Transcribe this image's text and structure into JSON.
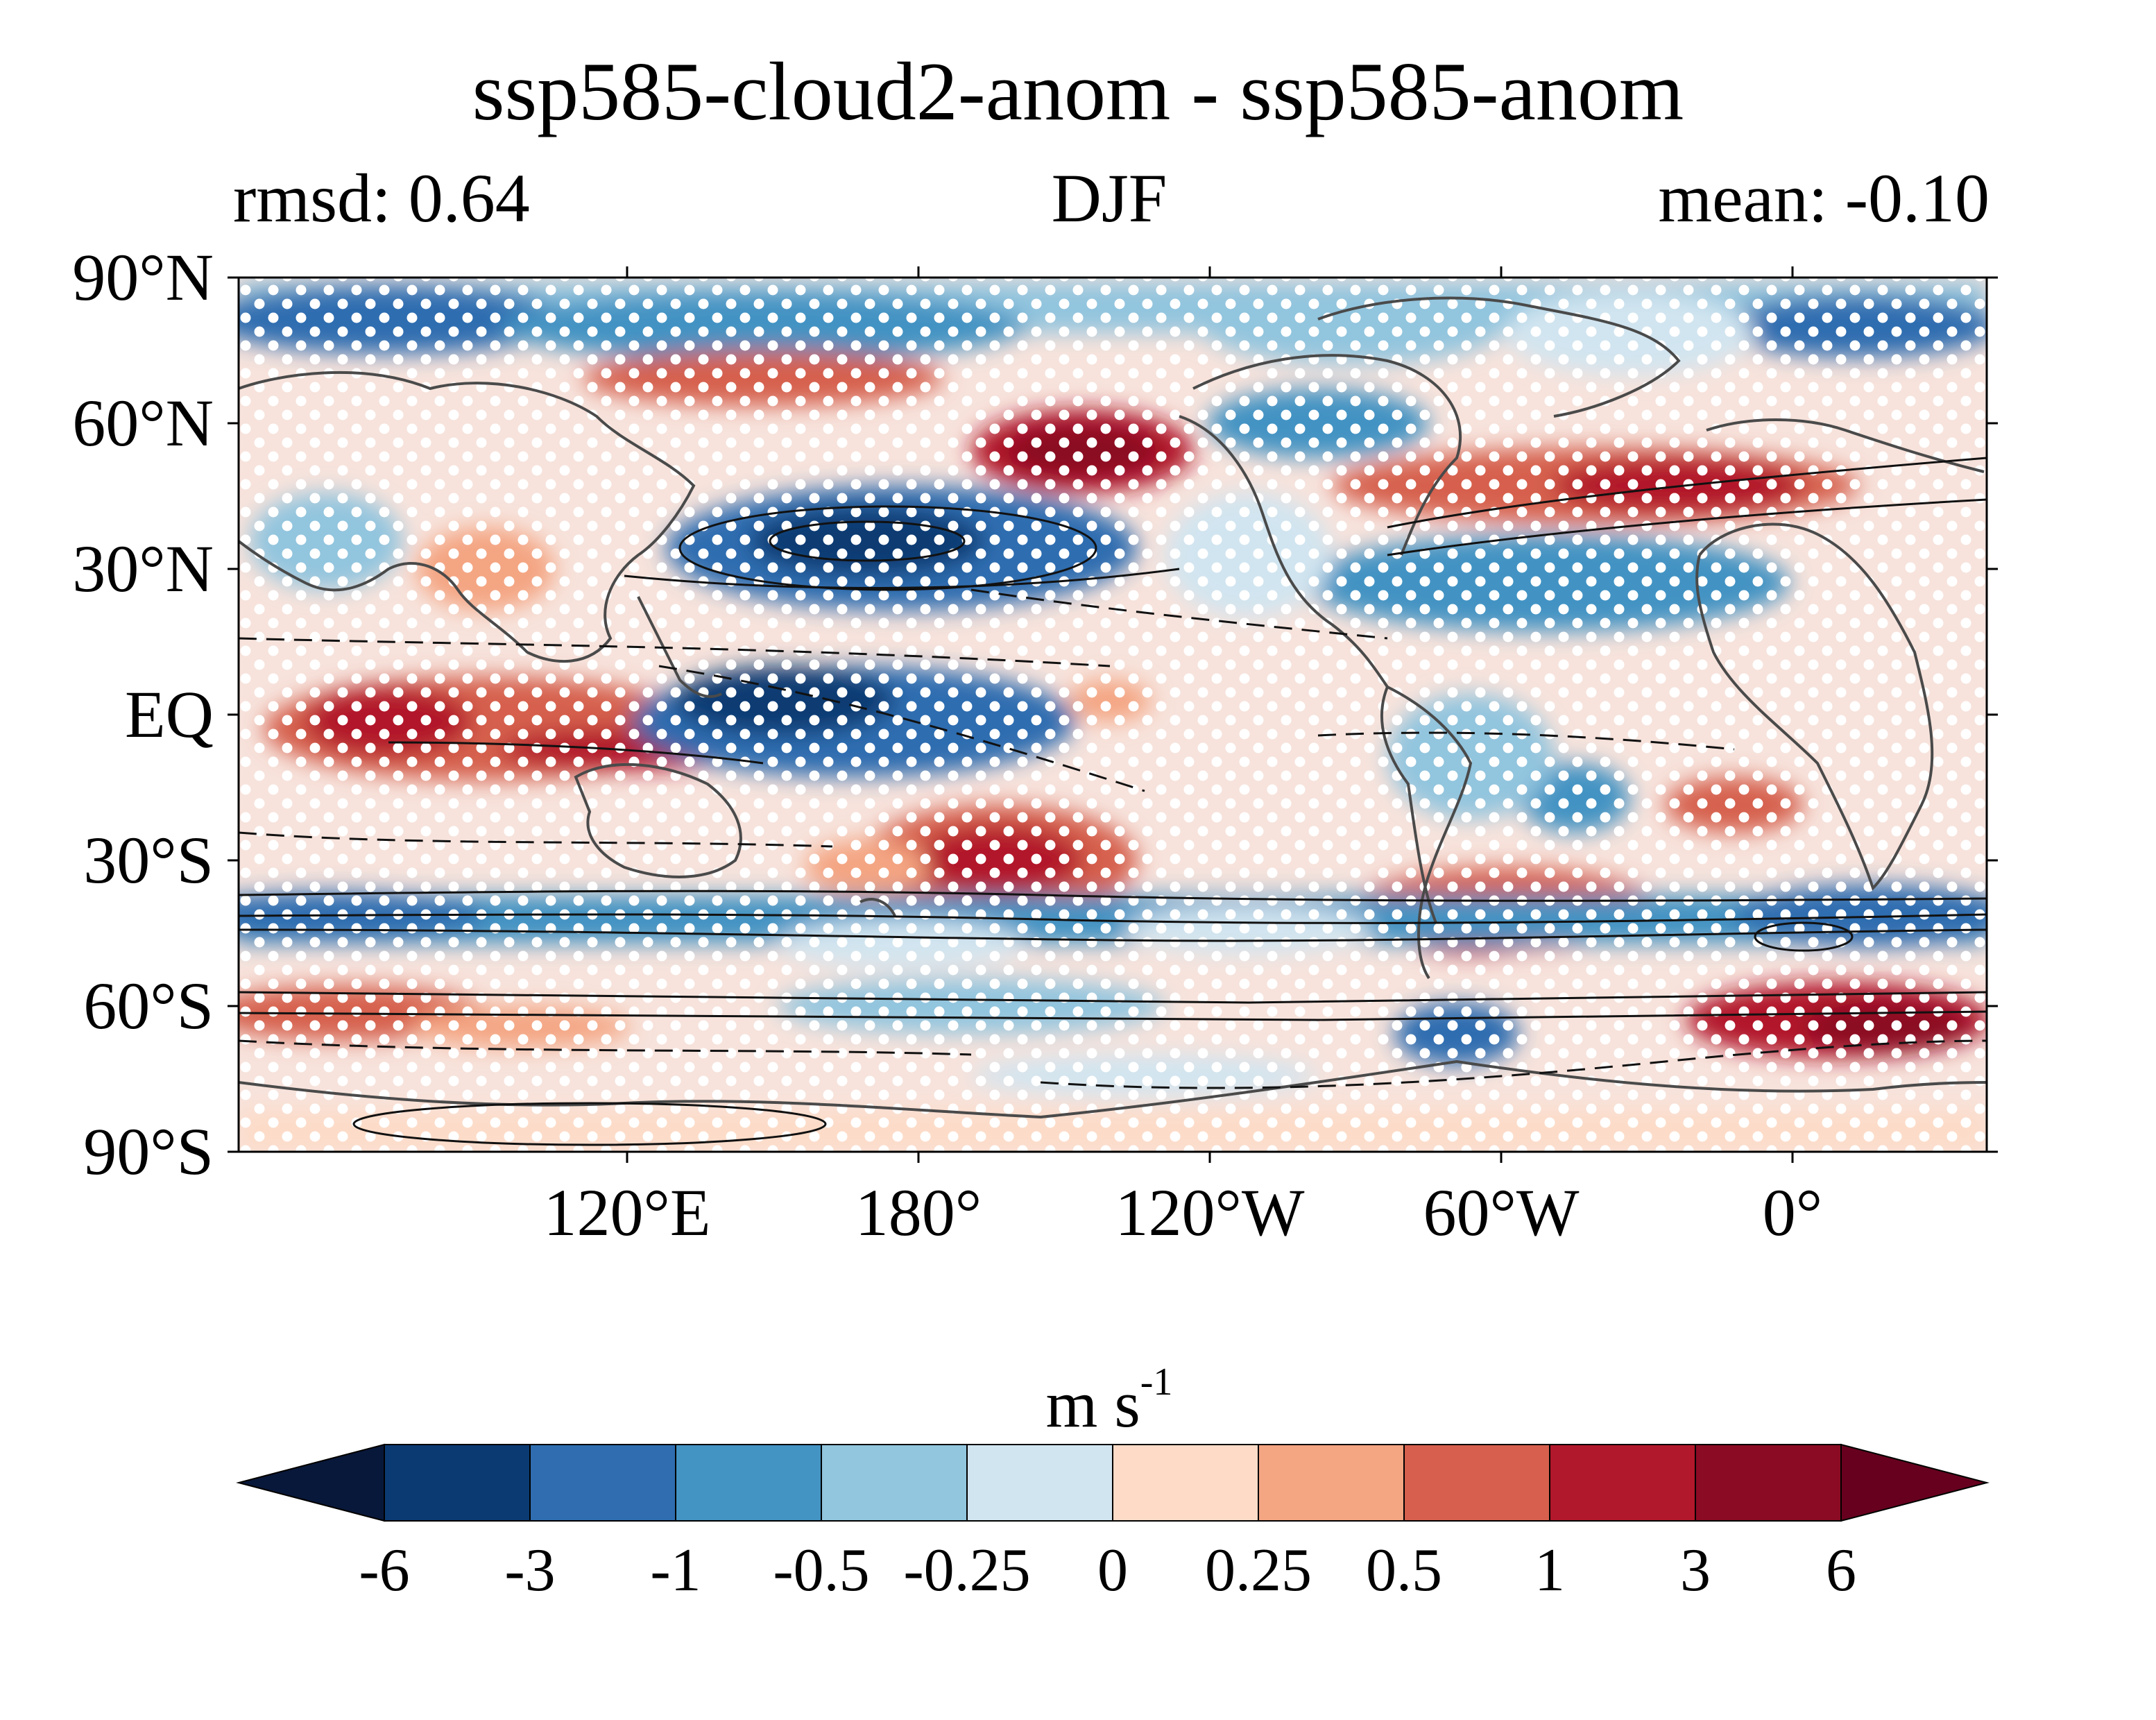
{
  "title": "ssp585-cloud2-anom - ssp585-anom",
  "subtitle_left": "rmsd: 0.64",
  "subtitle_center": "DJF",
  "subtitle_right": "mean: -0.10",
  "lat_labels": [
    "90°N",
    "60°N",
    "30°N",
    "EQ",
    "30°S",
    "60°S",
    "90°S"
  ],
  "lon_labels": [
    "120°E",
    "180°",
    "120°W",
    "60°W",
    "0°"
  ],
  "colorbar": {
    "units_base": "m s",
    "units_exp": "-1",
    "ticks": [
      "-6",
      "-3",
      "-1",
      "-0.5",
      "-0.25",
      "0",
      "0.25",
      "0.5",
      "1",
      "3",
      "6"
    ],
    "colors": [
      "#08183a",
      "#0b3a72",
      "#2f6db0",
      "#4393c3",
      "#92c5de",
      "#d1e5f0",
      "#fddbc7",
      "#f4a582",
      "#d6604d",
      "#b2182b",
      "#8a0b23",
      "#67001f"
    ]
  }
}
